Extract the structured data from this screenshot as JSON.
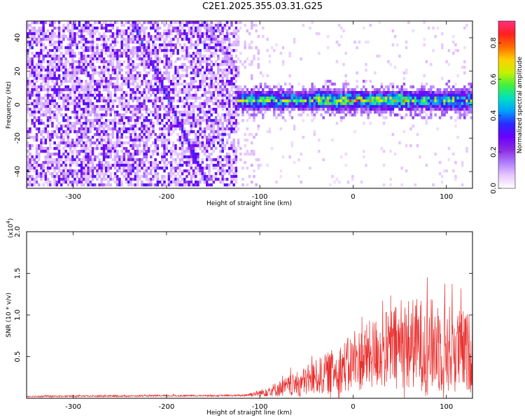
{
  "title": "C2E1.2025.355.03.31.G25",
  "colors": {
    "snr_line": "#e8302e",
    "colormap": [
      "#ffffff",
      "#e6c8ff",
      "#b07cff",
      "#8a2be2",
      "#6a00ff",
      "#2a2aff",
      "#00a0ff",
      "#00e0c0",
      "#40f040",
      "#c8f000",
      "#ffd000",
      "#ff6a00",
      "#ff2020",
      "#ff3080"
    ]
  },
  "chart_data": [
    {
      "type": "heatmap",
      "name": "spectrogram",
      "xlabel": "Height of straight line (km)",
      "ylabel": "Frequency (Hz)",
      "xlim": [
        -350,
        128
      ],
      "ylim": [
        -50,
        50
      ],
      "xticks": [
        "-300",
        "-200",
        "-100",
        "0",
        "100"
      ],
      "xtick_values": [
        -300,
        -200,
        -100,
        0,
        100
      ],
      "yticks": [
        "40",
        "20",
        "0",
        "-20",
        "-40"
      ],
      "ytick_values": [
        40,
        20,
        0,
        -20,
        -40
      ],
      "colorbar": {
        "label": "Normalized spectral amplitude",
        "range": [
          0,
          0.92
        ],
        "ticks": [
          "0.0",
          "0.2",
          "0.4",
          "0.6",
          "0.8"
        ],
        "tick_values": [
          0.0,
          0.2,
          0.4,
          0.6,
          0.8
        ]
      },
      "features": {
        "noise_region_x": [
          -350,
          -125
        ],
        "noise_fade_x": [
          -125,
          -100
        ],
        "signal_band": {
          "x_start": -125,
          "x_end": 128,
          "center_hz": 2,
          "half_width_hz": 6,
          "peak_amplitude": 0.7
        },
        "diagonal_traces": [
          {
            "from": [
              -235,
              48
            ],
            "to": [
              -155,
              -50
            ],
            "amplitude": 0.35
          },
          {
            "from": [
              -160,
              50
            ],
            "to": [
              -125,
              20
            ],
            "amplitude": 0.15
          },
          {
            "from": [
              -300,
              20
            ],
            "to": [
              -240,
              -45
            ],
            "amplitude": 0.12
          }
        ]
      }
    },
    {
      "type": "line",
      "name": "snr",
      "xlabel": "Height of straight line (km)",
      "ylabel": "SNR (10 * v/v)",
      "multiplier": "(x10",
      "multiplier_exp": "4",
      "multiplier_close": ")",
      "xlim": [
        -350,
        128
      ],
      "ylim": [
        0,
        2.0
      ],
      "xticks": [
        "-300",
        "-200",
        "-100",
        "0",
        "100"
      ],
      "xtick_values": [
        -300,
        -200,
        -100,
        0,
        100
      ],
      "yticks": [
        "2.0",
        "1.5",
        "1.0",
        "0.5"
      ],
      "ytick_values": [
        2.0,
        1.5,
        1.0,
        0.5
      ],
      "envelope": [
        {
          "x": -350,
          "base": 0.02,
          "spread": 0.02
        },
        {
          "x": -120,
          "base": 0.03,
          "spread": 0.02
        },
        {
          "x": -100,
          "base": 0.05,
          "spread": 0.08
        },
        {
          "x": -60,
          "base": 0.12,
          "spread": 0.3
        },
        {
          "x": -20,
          "base": 0.25,
          "spread": 0.55
        },
        {
          "x": 20,
          "base": 0.4,
          "spread": 0.85
        },
        {
          "x": 60,
          "base": 0.5,
          "spread": 1.1
        },
        {
          "x": 90,
          "base": 0.45,
          "spread": 1.15
        },
        {
          "x": 128,
          "base": 0.4,
          "spread": 0.95
        }
      ]
    }
  ]
}
